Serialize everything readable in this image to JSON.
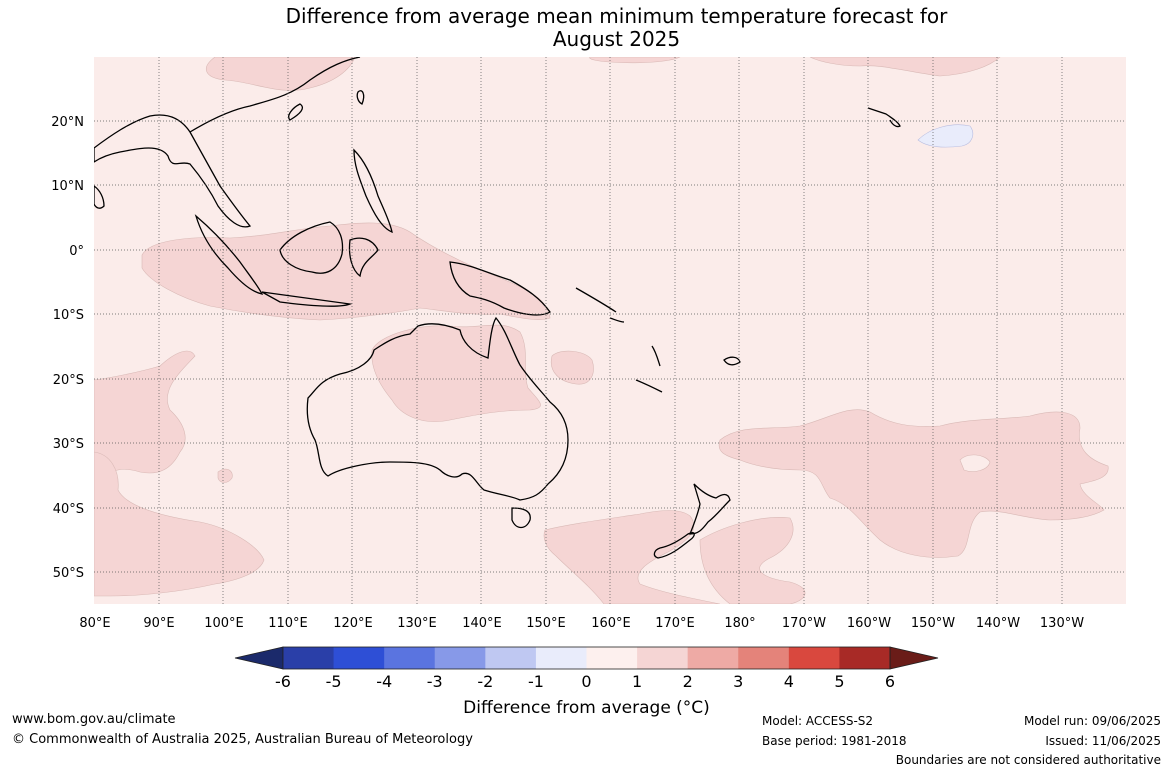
{
  "title_line1": "Difference from average mean minimum temperature forecast for",
  "title_line2": "August 2025",
  "lon_labels": [
    "80°E",
    "90°E",
    "100°E",
    "110°E",
    "120°E",
    "130°E",
    "140°E",
    "150°E",
    "160°E",
    "170°E",
    "180°",
    "170°W",
    "160°W",
    "150°W",
    "140°W",
    "130°W"
  ],
  "lat_labels": [
    "20°N",
    "10°N",
    "0°",
    "10°S",
    "20°S",
    "30°S",
    "40°S",
    "50°S"
  ],
  "colorbar": {
    "title": "Difference from average (°C)",
    "ticks": [
      "-6",
      "-5",
      "-4",
      "-3",
      "-2",
      "-1",
      "0",
      "1",
      "2",
      "3",
      "4",
      "5",
      "6"
    ],
    "colors": [
      "#1b2a6b",
      "#2a3fa8",
      "#2e4fd6",
      "#5a74e0",
      "#8799e8",
      "#bfc8f2",
      "#e9ecfb",
      "#fdf0ee",
      "#f5d5d4",
      "#eeaaa5",
      "#e4837a",
      "#d9483e",
      "#a82a26",
      "#6a1c18"
    ]
  },
  "legend_colors": {
    "zero_to_one": "#fbecea",
    "one_to_two": "#f5d5d4",
    "minus_one_to_zero": "#e9ecfb"
  },
  "footer": {
    "url": "www.bom.gov.au/climate",
    "copyright": "© Commonwealth of Australia 2025, Australian Bureau of Meteorology",
    "model": "Model: ACCESS-S2",
    "base_period": "Base period: 1981-2018",
    "model_run": "Model run: 09/06/2025",
    "issued": "Issued: 11/06/2025",
    "disclaimer": "Boundaries are not considered authoritative"
  }
}
